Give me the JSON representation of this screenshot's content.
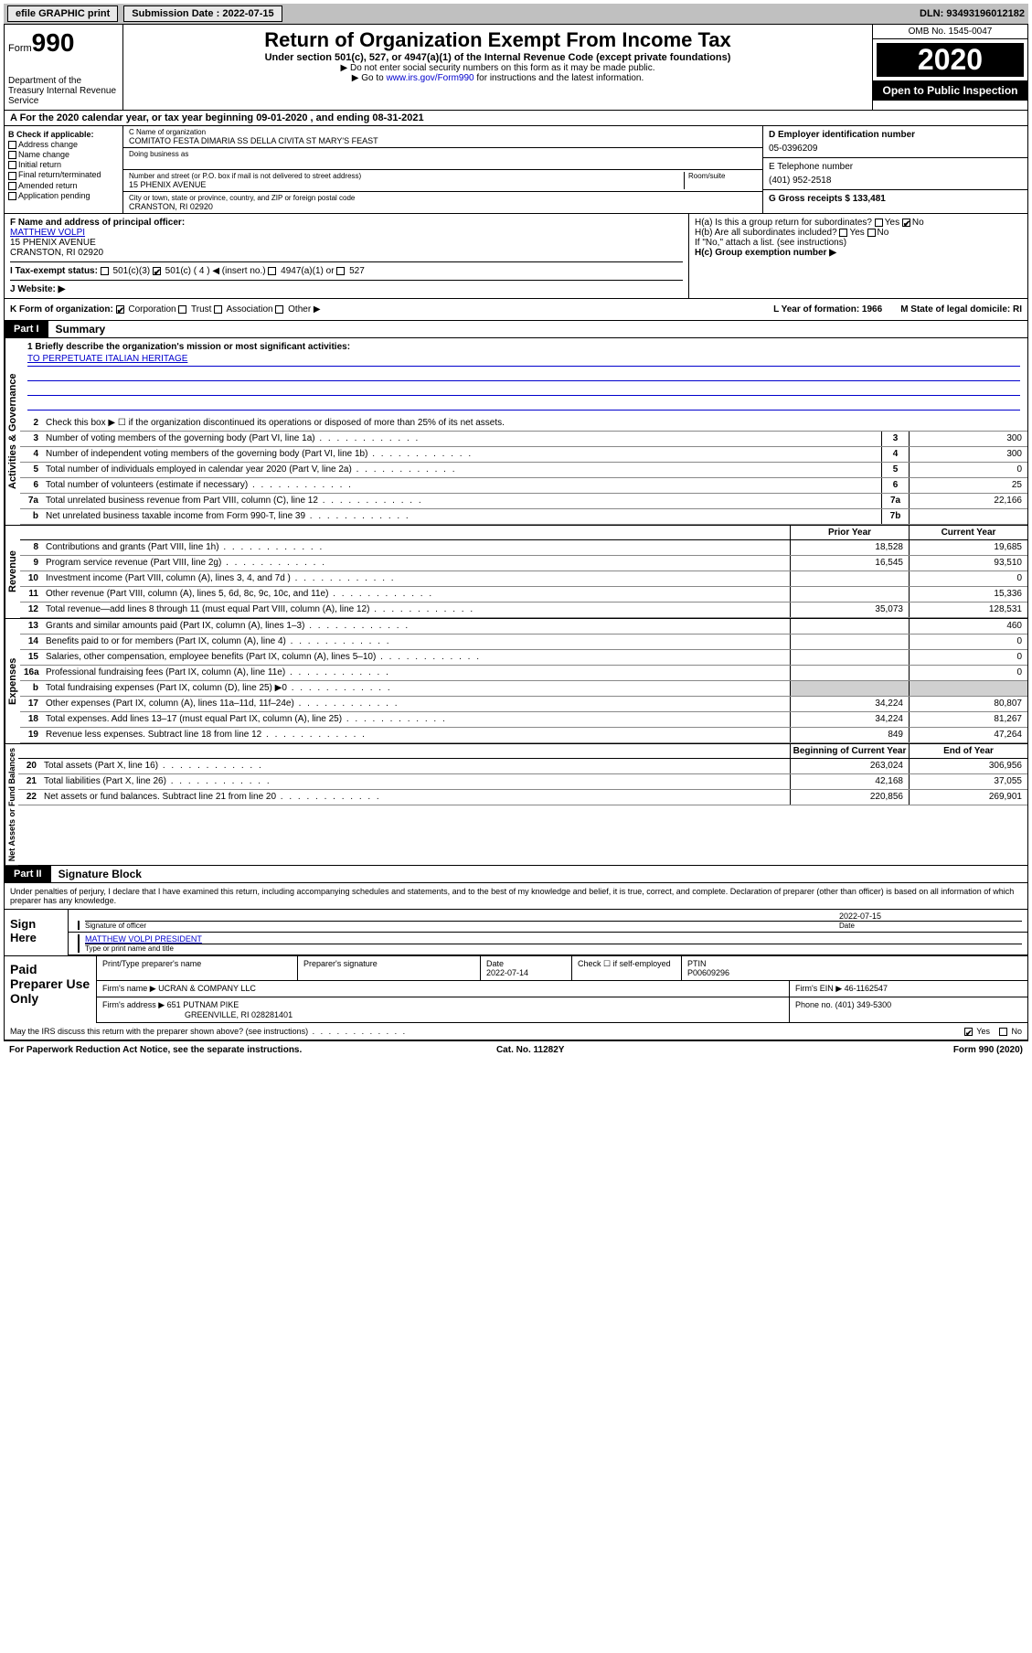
{
  "topbar": {
    "efile": "efile GRAPHIC print",
    "submission_label": "Submission Date : ",
    "submission_date": "2022-07-15",
    "dln": "DLN: 93493196012182"
  },
  "header": {
    "form_label": "Form",
    "form_number": "990",
    "dept": "Department of the Treasury Internal Revenue Service",
    "title": "Return of Organization Exempt From Income Tax",
    "subtitle": "Under section 501(c), 527, or 4947(a)(1) of the Internal Revenue Code (except private foundations)",
    "note1": "▶ Do not enter social security numbers on this form as it may be made public.",
    "note2_pre": "▶ Go to ",
    "note2_link": "www.irs.gov/Form990",
    "note2_post": " for instructions and the latest information.",
    "omb": "OMB No. 1545-0047",
    "year": "2020",
    "inspection": "Open to Public Inspection"
  },
  "period": {
    "text": "A For the 2020 calendar year, or tax year beginning 09-01-2020     , and ending 08-31-2021"
  },
  "section_b": {
    "label": "B Check if applicable:",
    "checks": [
      "Address change",
      "Name change",
      "Initial return",
      "Final return/terminated",
      "Amended return",
      "Application pending"
    ]
  },
  "section_c": {
    "name_label": "C Name of organization",
    "name": "COMITATO FESTA DIMARIA SS DELLA CIVITA ST MARY'S FEAST",
    "dba_label": "Doing business as",
    "addr_label": "Number and street (or P.O. box if mail is not delivered to street address)",
    "room_label": "Room/suite",
    "addr": "15 PHENIX AVENUE",
    "city_label": "City or town, state or province, country, and ZIP or foreign postal code",
    "city": "CRANSTON, RI  02920"
  },
  "section_d": {
    "label": "D Employer identification number",
    "value": "05-0396209"
  },
  "section_e": {
    "label": "E Telephone number",
    "value": "(401) 952-2518"
  },
  "section_g": {
    "label": "G Gross receipts $ 133,481"
  },
  "section_f": {
    "label": "F Name and address of principal officer:",
    "name": "MATTHEW VOLPI",
    "addr1": "15 PHENIX AVENUE",
    "addr2": "CRANSTON, RI  02920"
  },
  "section_h": {
    "ha": "H(a)  Is this a group return for subordinates?",
    "ha_yes": "Yes",
    "ha_no": "No",
    "hb": "H(b)  Are all subordinates included?",
    "hb_note": "If \"No,\" attach a list. (see instructions)",
    "hc": "H(c)  Group exemption number ▶"
  },
  "section_i": {
    "label": "I  Tax-exempt status:",
    "c3": "501(c)(3)",
    "c": "501(c) ( 4 ) ◀ (insert no.)",
    "a1": "4947(a)(1) or",
    "s527": "527"
  },
  "section_j": {
    "label": "J  Website: ▶"
  },
  "section_k": {
    "label": "K Form of organization:",
    "corp": "Corporation",
    "trust": "Trust",
    "assoc": "Association",
    "other": "Other ▶",
    "l": "L Year of formation: 1966",
    "m": "M State of legal domicile: RI"
  },
  "part1": {
    "tab": "Part I",
    "title": "Summary",
    "line1_label": "1 Briefly describe the organization's mission or most significant activities:",
    "mission": "TO PERPETUATE ITALIAN HERITAGE",
    "line2": "Check this box ▶ ☐  if the organization discontinued its operations or disposed of more than 25% of its net assets.",
    "lines_top": [
      {
        "n": "3",
        "t": "Number of voting members of the governing body (Part VI, line 1a)",
        "b": "3",
        "v": "300"
      },
      {
        "n": "4",
        "t": "Number of independent voting members of the governing body (Part VI, line 1b)",
        "b": "4",
        "v": "300"
      },
      {
        "n": "5",
        "t": "Total number of individuals employed in calendar year 2020 (Part V, line 2a)",
        "b": "5",
        "v": "0"
      },
      {
        "n": "6",
        "t": "Total number of volunteers (estimate if necessary)",
        "b": "6",
        "v": "25"
      },
      {
        "n": "7a",
        "t": "Total unrelated business revenue from Part VIII, column (C), line 12",
        "b": "7a",
        "v": "22,166"
      },
      {
        "n": "b",
        "t": "Net unrelated business taxable income from Form 990-T, line 39",
        "b": "7b",
        "v": ""
      }
    ],
    "prior_year": "Prior Year",
    "current_year": "Current Year",
    "revenue": [
      {
        "n": "8",
        "t": "Contributions and grants (Part VIII, line 1h)",
        "p": "18,528",
        "c": "19,685"
      },
      {
        "n": "9",
        "t": "Program service revenue (Part VIII, line 2g)",
        "p": "16,545",
        "c": "93,510"
      },
      {
        "n": "10",
        "t": "Investment income (Part VIII, column (A), lines 3, 4, and 7d )",
        "p": "",
        "c": "0"
      },
      {
        "n": "11",
        "t": "Other revenue (Part VIII, column (A), lines 5, 6d, 8c, 9c, 10c, and 11e)",
        "p": "",
        "c": "15,336"
      },
      {
        "n": "12",
        "t": "Total revenue—add lines 8 through 11 (must equal Part VIII, column (A), line 12)",
        "p": "35,073",
        "c": "128,531"
      }
    ],
    "expenses": [
      {
        "n": "13",
        "t": "Grants and similar amounts paid (Part IX, column (A), lines 1–3)",
        "p": "",
        "c": "460"
      },
      {
        "n": "14",
        "t": "Benefits paid to or for members (Part IX, column (A), line 4)",
        "p": "",
        "c": "0"
      },
      {
        "n": "15",
        "t": "Salaries, other compensation, employee benefits (Part IX, column (A), lines 5–10)",
        "p": "",
        "c": "0"
      },
      {
        "n": "16a",
        "t": "Professional fundraising fees (Part IX, column (A), line 11e)",
        "p": "",
        "c": "0"
      },
      {
        "n": "b",
        "t": "Total fundraising expenses (Part IX, column (D), line 25) ▶0",
        "p": "shade",
        "c": "shade"
      },
      {
        "n": "17",
        "t": "Other expenses (Part IX, column (A), lines 11a–11d, 11f–24e)",
        "p": "34,224",
        "c": "80,807"
      },
      {
        "n": "18",
        "t": "Total expenses. Add lines 13–17 (must equal Part IX, column (A), line 25)",
        "p": "34,224",
        "c": "81,267"
      },
      {
        "n": "19",
        "t": "Revenue less expenses. Subtract line 18 from line 12",
        "p": "849",
        "c": "47,264"
      }
    ],
    "boy": "Beginning of Current Year",
    "eoy": "End of Year",
    "assets": [
      {
        "n": "20",
        "t": "Total assets (Part X, line 16)",
        "p": "263,024",
        "c": "306,956"
      },
      {
        "n": "21",
        "t": "Total liabilities (Part X, line 26)",
        "p": "42,168",
        "c": "37,055"
      },
      {
        "n": "22",
        "t": "Net assets or fund balances. Subtract line 21 from line 20",
        "p": "220,856",
        "c": "269,901"
      }
    ],
    "vert_gov": "Activities & Governance",
    "vert_rev": "Revenue",
    "vert_exp": "Expenses",
    "vert_net": "Net Assets or Fund Balances"
  },
  "part2": {
    "tab": "Part II",
    "title": "Signature Block",
    "penalty": "Under penalties of perjury, I declare that I have examined this return, including accompanying schedules and statements, and to the best of my knowledge and belief, it is true, correct, and complete. Declaration of preparer (other than officer) is based on all information of which preparer has any knowledge.",
    "sign_here": "Sign Here",
    "sig_officer": "Signature of officer",
    "sig_date": "2022-07-15",
    "date_label": "Date",
    "officer_name": "MATTHEW VOLPI  PRESIDENT",
    "type_label": "Type or print name and title",
    "paid": "Paid Preparer Use Only",
    "prep_name_label": "Print/Type preparer's name",
    "prep_sig_label": "Preparer's signature",
    "prep_date_label": "Date",
    "prep_date": "2022-07-14",
    "check_self": "Check ☐ if self-employed",
    "ptin_label": "PTIN",
    "ptin": "P00609296",
    "firm_name_label": "Firm's name     ▶",
    "firm_name": "UCRAN & COMPANY LLC",
    "firm_ein_label": "Firm's EIN ▶",
    "firm_ein": "46-1162547",
    "firm_addr_label": "Firm's address ▶",
    "firm_addr1": "651 PUTNAM PIKE",
    "firm_addr2": "GREENVILLE, RI  028281401",
    "phone_label": "Phone no.",
    "phone": "(401) 349-5300",
    "discuss": "May the IRS discuss this return with the preparer shown above? (see instructions)",
    "yes": "Yes",
    "no": "No"
  },
  "footer": {
    "left": "For Paperwork Reduction Act Notice, see the separate instructions.",
    "mid": "Cat. No. 11282Y",
    "right": "Form 990 (2020)"
  }
}
